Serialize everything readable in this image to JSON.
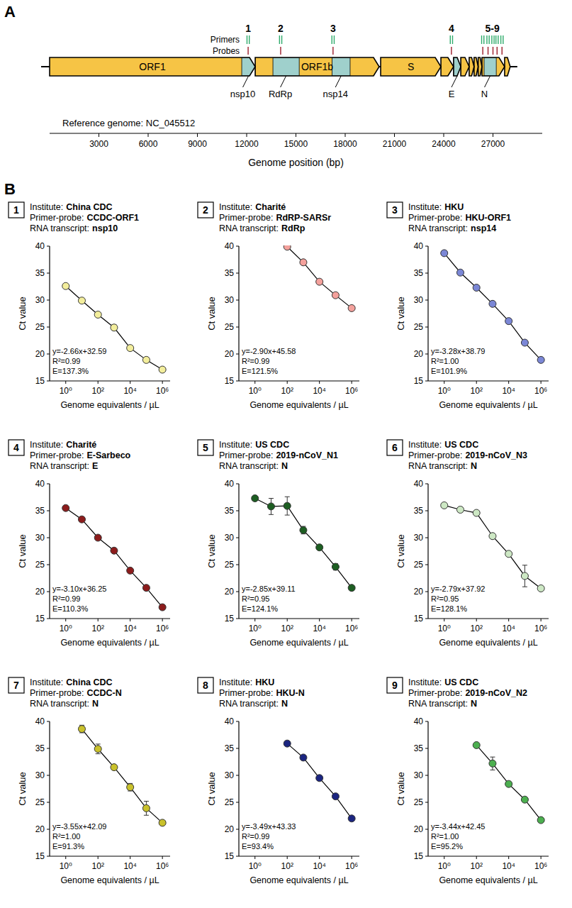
{
  "panel_labels": [
    "A",
    "B"
  ],
  "genome_map": {
    "numbers": [
      {
        "label": "1",
        "position": 12090
      },
      {
        "label": "2",
        "position": 14070
      },
      {
        "label": "3",
        "position": 17260
      },
      {
        "label": "4",
        "position": 24470
      },
      {
        "label": "5-9",
        "position": 26960
      }
    ],
    "primers_label": "Primers",
    "probes_label": "Probes",
    "primers": [
      12090,
      14070,
      17260,
      24470,
      26380,
      26700,
      27000,
      27250,
      27550
    ],
    "probes": [
      12090,
      14070,
      17260,
      24470,
      26380,
      26700,
      27000,
      27250,
      27550
    ],
    "genes": [
      {
        "label": "ORF1",
        "start": 0,
        "end": 12520
      },
      {
        "label": "ORF1b",
        "start": 12520,
        "end": 20070
      },
      {
        "label": "S",
        "start": 20160,
        "end": 23830
      },
      {
        "label": null,
        "start": 23830,
        "end": 24600
      },
      {
        "label": null,
        "start": 24600,
        "end": 25040
      },
      {
        "label": null,
        "start": 25040,
        "end": 25550
      },
      {
        "label": null,
        "start": 25550,
        "end": 25850
      },
      {
        "label": null,
        "start": 25850,
        "end": 26100
      },
      {
        "label": null,
        "start": 26100,
        "end": 26330
      },
      {
        "label": null,
        "start": 26330,
        "end": 27710
      },
      {
        "label": null,
        "start": 27710,
        "end": 28050
      }
    ],
    "regions": [
      {
        "label": "nsp10",
        "start": 11700,
        "end": 12520
      },
      {
        "label": "RdRp",
        "start": 13600,
        "end": 15200
      },
      {
        "label": "nsp14",
        "start": 17200,
        "end": 18300
      },
      {
        "label": "E",
        "start": 24600,
        "end": 25040
      },
      {
        "label": "N",
        "start": 26460,
        "end": 27200
      }
    ],
    "reference": "Reference genome: NC_045512",
    "axis_label": "Genome position (bp)",
    "xlim": [
      0,
      30000
    ],
    "xticks": [
      3000,
      6000,
      9000,
      12000,
      15000,
      18000,
      21000,
      24000,
      27000
    ]
  },
  "chart_data": [
    {
      "type": "line",
      "panel": "1",
      "info": [
        {
          "label": "Institute:",
          "value": "China CDC"
        },
        {
          "label": "Primer-probe:",
          "value": "CCDC-ORF1"
        },
        {
          "label": "RNA transcript:",
          "value": "nsp10"
        }
      ],
      "xlabel": "Genome equivalents / µL",
      "ylabel": "Ct value",
      "log": "x",
      "xlim": [
        0.1,
        3000000
      ],
      "ylim": [
        15,
        40
      ],
      "xticks": [
        {
          "value": 1,
          "label": "10⁰"
        },
        {
          "value": 100,
          "label": "10²"
        },
        {
          "value": 10000,
          "label": "10⁴"
        },
        {
          "value": 1000000,
          "label": "10⁶"
        }
      ],
      "yticks": [
        15,
        20,
        25,
        30,
        35,
        40
      ],
      "grid": false,
      "marker": "circle",
      "color": "#f3ee9c",
      "x": [
        1,
        10,
        100,
        1000,
        10000,
        100000,
        1000000
      ],
      "values": [
        32.6,
        29.9,
        27.3,
        24.9,
        21.1,
        18.9,
        17.1
      ],
      "errors": [
        null,
        null,
        null,
        0.5,
        null,
        null,
        null
      ],
      "annotations": [
        "y=-2.66x+32.59",
        "R²=0.99",
        "E=137.3%"
      ]
    },
    {
      "type": "line",
      "panel": "2",
      "info": [
        {
          "label": "Institute:",
          "value": "Charité"
        },
        {
          "label": "Primer-probe:",
          "value": "RdRP-SARSr"
        },
        {
          "label": "RNA transcript:",
          "value": "RdRp"
        }
      ],
      "xlabel": "Genome equivalents / µL",
      "ylabel": "Ct value",
      "log": "x",
      "xlim": [
        0.1,
        3000000
      ],
      "ylim": [
        15,
        40
      ],
      "xticks": [
        {
          "value": 1,
          "label": "10⁰"
        },
        {
          "value": 100,
          "label": "10²"
        },
        {
          "value": 10000,
          "label": "10⁴"
        },
        {
          "value": 1000000,
          "label": "10⁶"
        }
      ],
      "yticks": [
        15,
        20,
        25,
        30,
        35,
        40
      ],
      "grid": false,
      "marker": "circle",
      "color": "#f4a19c",
      "x": [
        100,
        1000,
        10000,
        100000,
        1000000
      ],
      "values": [
        39.9,
        37.0,
        33.4,
        30.9,
        28.5
      ],
      "errors": [
        null,
        null,
        null,
        null,
        null
      ],
      "annotations": [
        "y=-2.90x+45.58",
        "R²=0.99",
        "E=121.5%"
      ]
    },
    {
      "type": "line",
      "panel": "3",
      "info": [
        {
          "label": "Institute:",
          "value": "HKU"
        },
        {
          "label": "Primer-probe:",
          "value": "HKU-ORF1"
        },
        {
          "label": "RNA transcript:",
          "value": "nsp14"
        }
      ],
      "xlabel": "Genome equivalents / µL",
      "ylabel": "Ct value",
      "log": "x",
      "xlim": [
        0.1,
        3000000
      ],
      "ylim": [
        15,
        40
      ],
      "xticks": [
        {
          "value": 1,
          "label": "10⁰"
        },
        {
          "value": 100,
          "label": "10²"
        },
        {
          "value": 10000,
          "label": "10⁴"
        },
        {
          "value": 1000000,
          "label": "10⁶"
        }
      ],
      "yticks": [
        15,
        20,
        25,
        30,
        35,
        40
      ],
      "grid": false,
      "marker": "circle",
      "color": "#7b87d6",
      "x": [
        1,
        10,
        100,
        1000,
        10000,
        100000,
        1000000
      ],
      "values": [
        38.7,
        35.1,
        32.3,
        29.3,
        26.1,
        22.1,
        18.9
      ],
      "errors": [
        null,
        null,
        null,
        null,
        null,
        null,
        null
      ],
      "annotations": [
        "y=-3.28x+38.79",
        "R²=1.00",
        "E=101.9%"
      ]
    },
    {
      "type": "line",
      "panel": "4",
      "info": [
        {
          "label": "Institute:",
          "value": "Charité"
        },
        {
          "label": "Primer-probe:",
          "value": "E-Sarbeco"
        },
        {
          "label": "RNA transcript:",
          "value": "E"
        }
      ],
      "xlabel": "Genome equivalents / µL",
      "ylabel": "Ct value",
      "log": "x",
      "xlim": [
        0.1,
        3000000
      ],
      "ylim": [
        15,
        40
      ],
      "xticks": [
        {
          "value": 1,
          "label": "10⁰"
        },
        {
          "value": 100,
          "label": "10²"
        },
        {
          "value": 10000,
          "label": "10⁴"
        },
        {
          "value": 1000000,
          "label": "10⁶"
        }
      ],
      "yticks": [
        15,
        20,
        25,
        30,
        35,
        40
      ],
      "grid": false,
      "marker": "circle",
      "color": "#8c1c1c",
      "x": [
        1,
        10,
        100,
        1000,
        10000,
        100000,
        1000000
      ],
      "values": [
        35.5,
        33.4,
        30.0,
        27.6,
        23.9,
        20.7,
        17.1
      ],
      "errors": [
        null,
        null,
        null,
        null,
        null,
        null,
        null
      ],
      "annotations": [
        "y=-3.10x+36.25",
        "R²=0.99",
        "E=110.3%"
      ]
    },
    {
      "type": "line",
      "panel": "5",
      "info": [
        {
          "label": "Institute:",
          "value": "US CDC"
        },
        {
          "label": "Primer-probe:",
          "value": "2019-nCoV_N1"
        },
        {
          "label": "RNA transcript:",
          "value": "N"
        }
      ],
      "xlabel": "Genome equivalents / µL",
      "ylabel": "Ct value",
      "log": "x",
      "xlim": [
        0.1,
        3000000
      ],
      "ylim": [
        15,
        40
      ],
      "xticks": [
        {
          "value": 1,
          "label": "10⁰"
        },
        {
          "value": 100,
          "label": "10²"
        },
        {
          "value": 10000,
          "label": "10⁴"
        },
        {
          "value": 1000000,
          "label": "10⁶"
        }
      ],
      "yticks": [
        15,
        20,
        25,
        30,
        35,
        40
      ],
      "grid": false,
      "marker": "circle",
      "color": "#1d5e22",
      "x": [
        1,
        10,
        100,
        1000,
        10000,
        100000,
        1000000
      ],
      "values": [
        37.3,
        35.8,
        35.9,
        31.4,
        28.2,
        24.6,
        20.7
      ],
      "errors": [
        null,
        1.5,
        1.7,
        0.7,
        null,
        0.6,
        null
      ],
      "annotations": [
        "y=-2.85x+39.11",
        "R²=0.95",
        "E=124.1%"
      ]
    },
    {
      "type": "line",
      "panel": "6",
      "info": [
        {
          "label": "Institute:",
          "value": "US CDC"
        },
        {
          "label": "Primer-probe:",
          "value": "2019-nCoV_N3"
        },
        {
          "label": "RNA transcript:",
          "value": "N"
        }
      ],
      "xlabel": "Genome equivalents / µL",
      "ylabel": "Ct value",
      "log": "x",
      "xlim": [
        0.1,
        3000000
      ],
      "ylim": [
        15,
        40
      ],
      "xticks": [
        {
          "value": 1,
          "label": "10⁰"
        },
        {
          "value": 100,
          "label": "10²"
        },
        {
          "value": 10000,
          "label": "10⁴"
        },
        {
          "value": 1000000,
          "label": "10⁶"
        }
      ],
      "yticks": [
        15,
        20,
        25,
        30,
        35,
        40
      ],
      "grid": false,
      "marker": "circle",
      "color": "#cde8c4",
      "x": [
        1,
        10,
        100,
        1000,
        10000,
        100000,
        1000000
      ],
      "values": [
        36.0,
        35.2,
        34.6,
        30.3,
        27.0,
        22.9,
        20.6
      ],
      "errors": [
        null,
        null,
        null,
        null,
        null,
        2.0,
        null
      ],
      "annotations": [
        "y=-2.79x+37.92",
        "R²=0.95",
        "E=128.1%"
      ]
    },
    {
      "type": "line",
      "panel": "7",
      "info": [
        {
          "label": "Institute:",
          "value": "China CDC"
        },
        {
          "label": "Primer-probe:",
          "value": "CCDC-N"
        },
        {
          "label": "RNA transcript:",
          "value": "N"
        }
      ],
      "xlabel": "Genome equivalents / µL",
      "ylabel": "Ct value",
      "log": "x",
      "xlim": [
        0.1,
        3000000
      ],
      "ylim": [
        15,
        40
      ],
      "xticks": [
        {
          "value": 1,
          "label": "10⁰"
        },
        {
          "value": 100,
          "label": "10²"
        },
        {
          "value": 10000,
          "label": "10⁴"
        },
        {
          "value": 1000000,
          "label": "10⁶"
        }
      ],
      "yticks": [
        15,
        20,
        25,
        30,
        35,
        40
      ],
      "grid": false,
      "marker": "circle",
      "color": "#c9c12b",
      "x": [
        10,
        100,
        1000,
        10000,
        100000,
        1000000
      ],
      "values": [
        38.6,
        34.9,
        31.5,
        27.8,
        23.9,
        21.2
      ],
      "errors": [
        0.7,
        0.9,
        null,
        0.7,
        1.3,
        null
      ],
      "annotations": [
        "y=-3.55x+42.09",
        "R²=1.00",
        "E=91.3%"
      ]
    },
    {
      "type": "line",
      "panel": "8",
      "info": [
        {
          "label": "Institute:",
          "value": "HKU"
        },
        {
          "label": "Primer-probe:",
          "value": "HKU-N"
        },
        {
          "label": "RNA transcript:",
          "value": "N"
        }
      ],
      "xlabel": "Genome equivalents / µL",
      "ylabel": "Ct value",
      "log": "x",
      "xlim": [
        0.1,
        3000000
      ],
      "ylim": [
        15,
        40
      ],
      "xticks": [
        {
          "value": 1,
          "label": "10⁰"
        },
        {
          "value": 100,
          "label": "10²"
        },
        {
          "value": 10000,
          "label": "10⁴"
        },
        {
          "value": 1000000,
          "label": "10⁶"
        }
      ],
      "yticks": [
        15,
        20,
        25,
        30,
        35,
        40
      ],
      "grid": false,
      "marker": "circle",
      "color": "#1b2580",
      "x": [
        100,
        1000,
        10000,
        100000,
        1000000
      ],
      "values": [
        35.9,
        33.3,
        29.5,
        26.1,
        22.0
      ],
      "errors": [
        null,
        null,
        null,
        null,
        null
      ],
      "annotations": [
        "y=-3.49x+43.33",
        "R²=0.99",
        "E=93.4%"
      ]
    },
    {
      "type": "line",
      "panel": "9",
      "info": [
        {
          "label": "Institute:",
          "value": "US CDC"
        },
        {
          "label": "Primer-probe:",
          "value": "2019-nCoV_N2"
        },
        {
          "label": "RNA transcript:",
          "value": "N"
        }
      ],
      "xlabel": "Genome equivalents / µL",
      "ylabel": "Ct value",
      "log": "x",
      "xlim": [
        0.1,
        3000000
      ],
      "ylim": [
        15,
        40
      ],
      "xticks": [
        {
          "value": 1,
          "label": "10⁰"
        },
        {
          "value": 100,
          "label": "10²"
        },
        {
          "value": 10000,
          "label": "10⁴"
        },
        {
          "value": 1000000,
          "label": "10⁶"
        }
      ],
      "yticks": [
        15,
        20,
        25,
        30,
        35,
        40
      ],
      "grid": false,
      "marker": "circle",
      "color": "#4caf4f",
      "x": [
        100,
        1000,
        10000,
        100000,
        1000000
      ],
      "values": [
        35.6,
        32.2,
        28.4,
        25.5,
        21.7
      ],
      "errors": [
        null,
        1.2,
        null,
        null,
        null
      ],
      "annotations": [
        "y=-3.44x+42.45",
        "R²=1.00",
        "E=95.2%"
      ]
    }
  ]
}
